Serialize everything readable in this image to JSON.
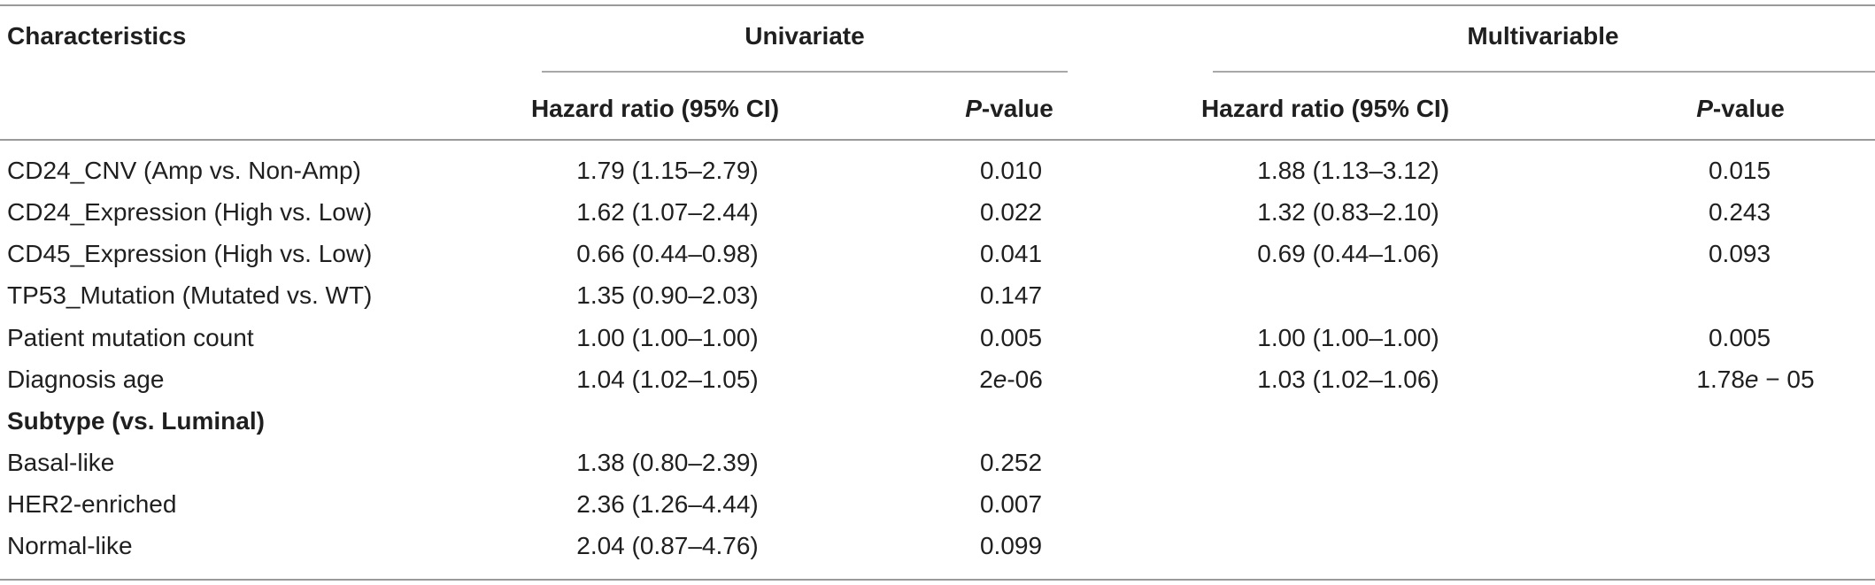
{
  "headers": {
    "characteristics": "Characteristics",
    "univariate": "Univariate",
    "multivariable": "Multivariable",
    "uni_hr": "Hazard ratio (95% CI)",
    "uni_p_italic": "P",
    "uni_p_rest": "-value",
    "multi_hr": "Hazard ratio (95% CI)",
    "multi_p_italic": "P",
    "multi_p_rest": "-value"
  },
  "rows": [
    {
      "label": "CD24_CNV (Amp vs. Non-Amp)",
      "uni_hr": "1.79 (1.15–2.79)",
      "uni_p": "0.010",
      "multi_hr": "1.88 (1.13–3.12)",
      "multi_p": "0.015"
    },
    {
      "label": "CD24_Expression (High vs. Low)",
      "uni_hr": "1.62 (1.07–2.44)",
      "uni_p": "0.022",
      "multi_hr": "1.32 (0.83–2.10)",
      "multi_p": "0.243"
    },
    {
      "label": "CD45_Expression (High vs. Low)",
      "uni_hr": "0.66 (0.44–0.98)",
      "uni_p": "0.041",
      "multi_hr": "0.69 (0.44–1.06)",
      "multi_p": "0.093"
    },
    {
      "label": "TP53_Mutation (Mutated vs. WT)",
      "uni_hr": "1.35 (0.90–2.03)",
      "uni_p": "0.147",
      "multi_hr": "",
      "multi_p": ""
    },
    {
      "label": "Patient mutation count",
      "uni_hr": "1.00 (1.00–1.00)",
      "uni_p": "0.005",
      "multi_hr": "1.00 (1.00–1.00)",
      "multi_p": "0.005"
    },
    {
      "label": "Diagnosis age",
      "uni_hr": "1.04 (1.02–1.05)",
      "uni_p_a": "2",
      "uni_p_e": "e",
      "uni_p_b": "-06",
      "multi_hr": "1.03 (1.02–1.06)",
      "multi_p_a": "1.78",
      "multi_p_e": "e",
      "multi_p_b": " − 05"
    },
    {
      "label": "Subtype (vs. Luminal)"
    },
    {
      "label": "Basal-like",
      "uni_hr": "1.38 (0.80–2.39)",
      "uni_p": "0.252"
    },
    {
      "label": "HER2-enriched",
      "uni_hr": "2.36 (1.26–4.44)",
      "uni_p": "0.007"
    },
    {
      "label": "Normal-like",
      "uni_hr": "2.04 (0.87–4.76)",
      "uni_p": "0.099"
    }
  ]
}
